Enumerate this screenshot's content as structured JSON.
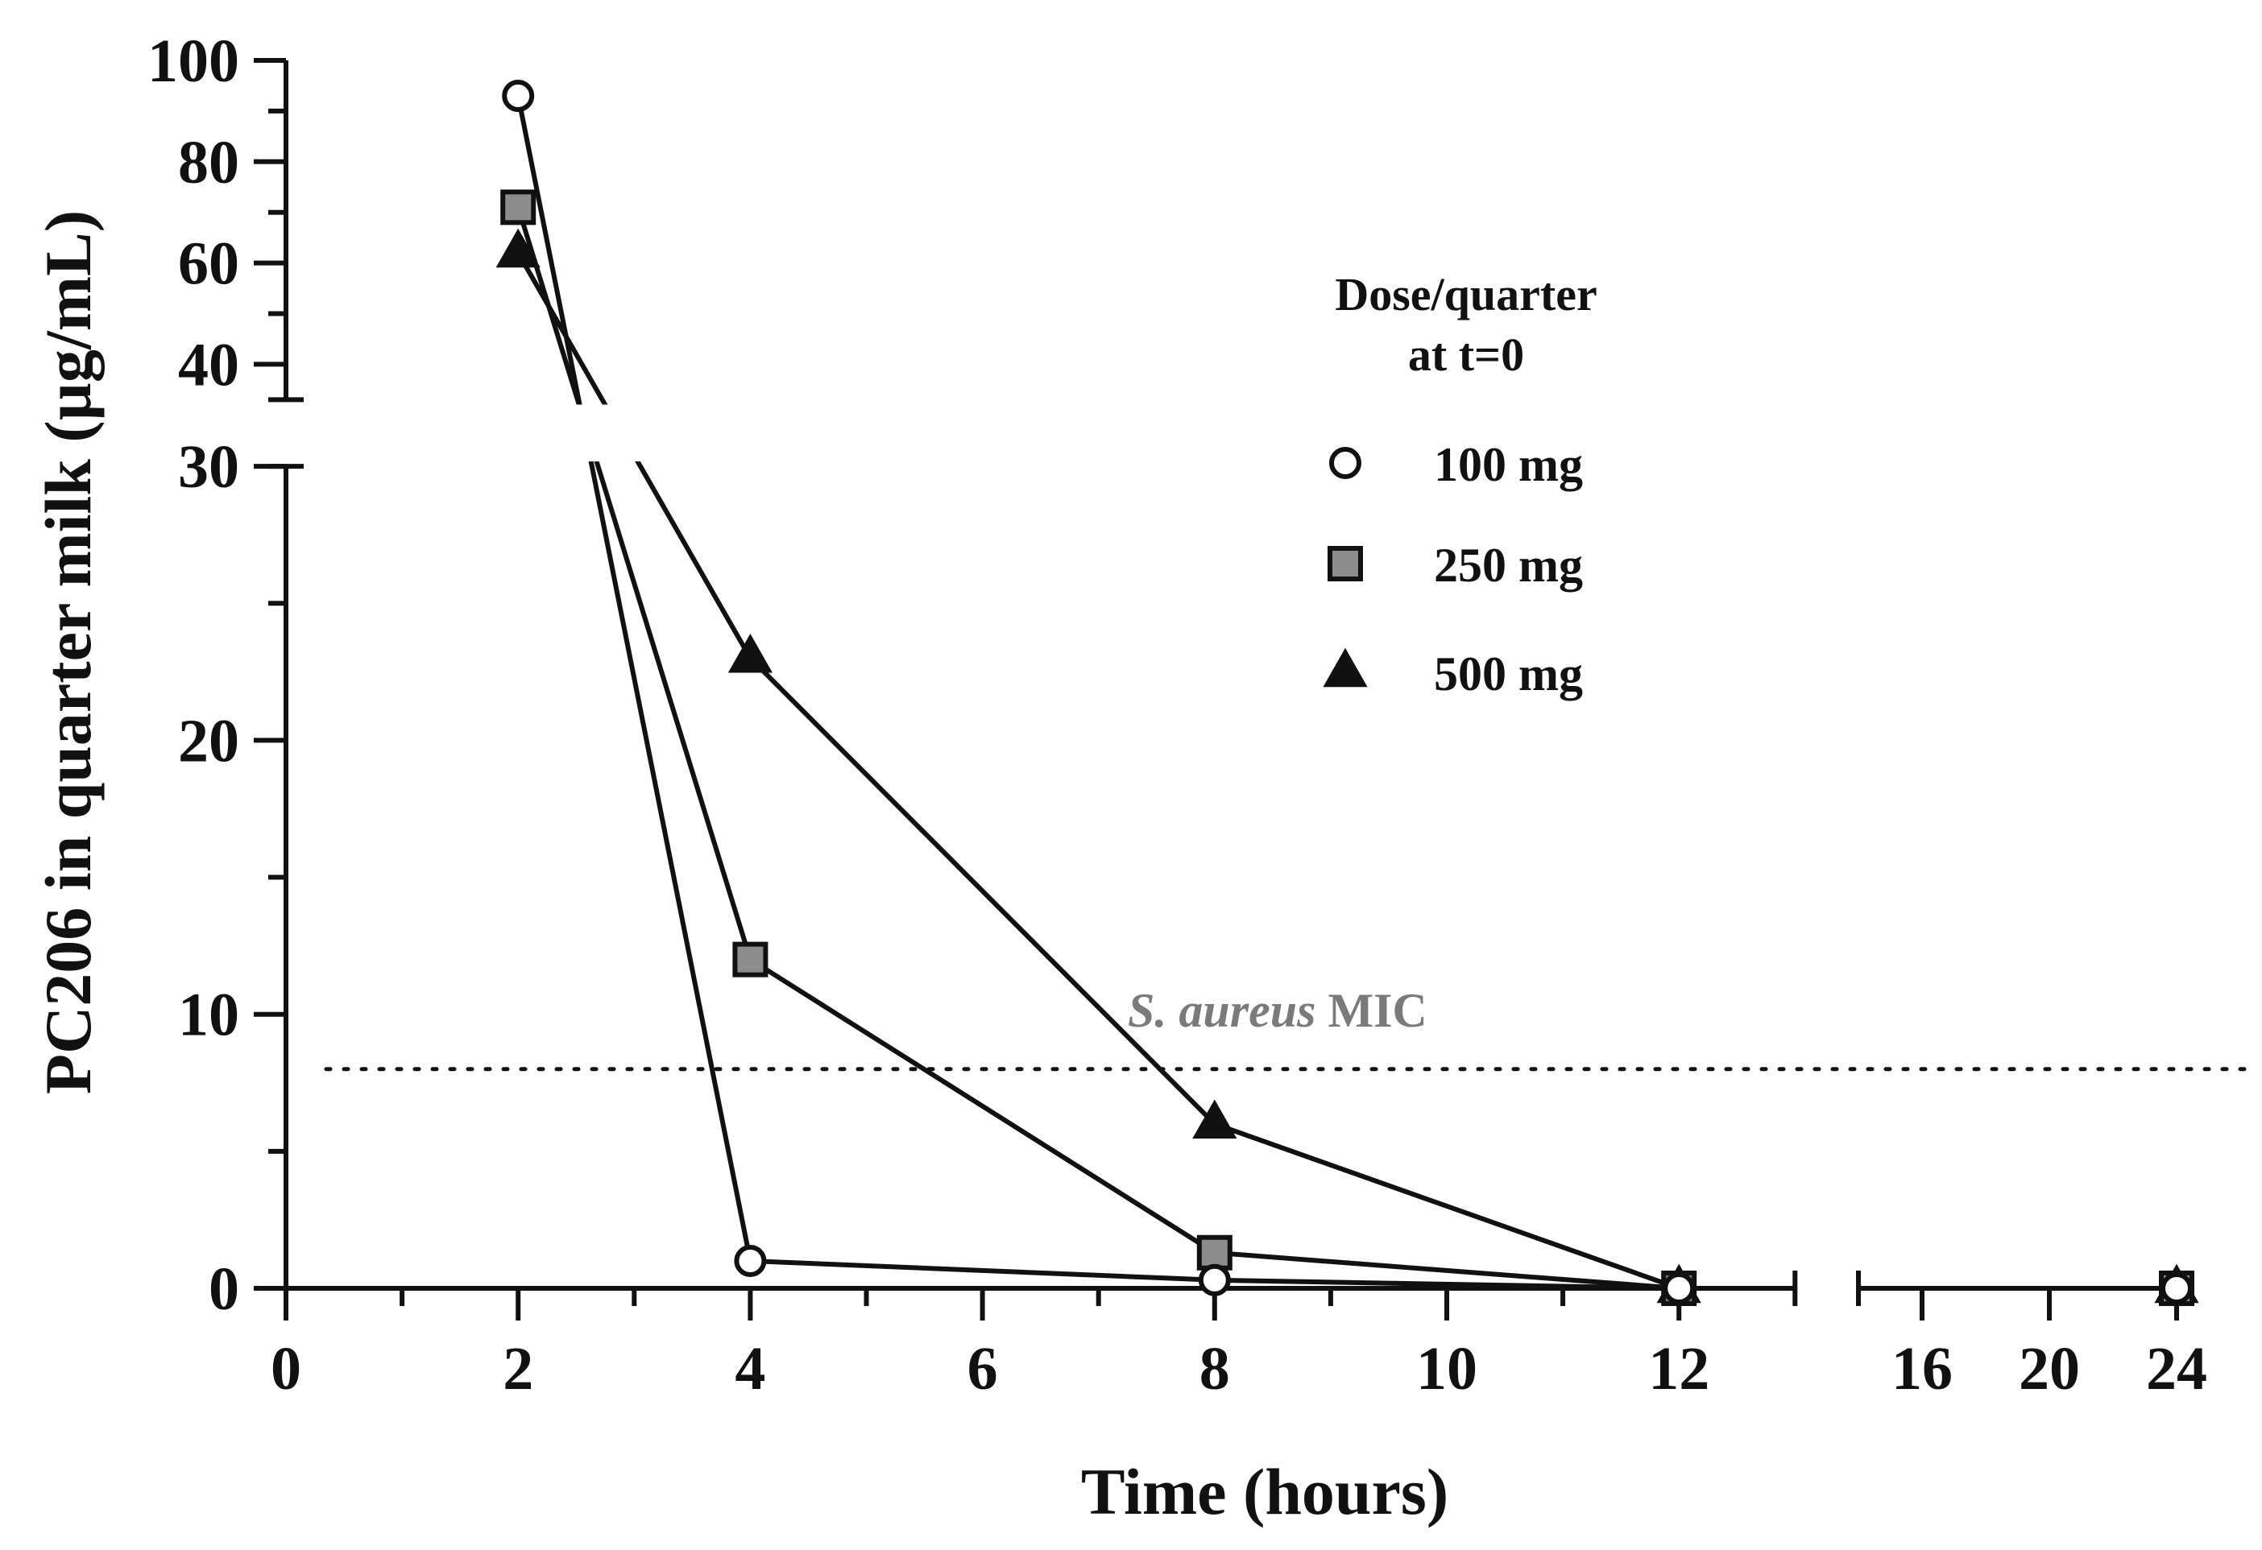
{
  "chart_data": {
    "type": "line",
    "title": "",
    "xlabel": "Time (hours)",
    "ylabel": "PC206 in quarter milk (µg/mL)",
    "x_segments": [
      {
        "range": [
          0,
          13
        ],
        "ticks": [
          0,
          2,
          4,
          6,
          8,
          10,
          12
        ],
        "minor_ticks": [
          1,
          3,
          5,
          7,
          9,
          11
        ]
      },
      {
        "range": [
          14,
          24
        ],
        "ticks": [
          16,
          20,
          24
        ],
        "minor_ticks": []
      }
    ],
    "y_segments": [
      {
        "range": [
          0,
          30
        ],
        "ticks": [
          0,
          10,
          20,
          30
        ],
        "minor_ticks": [
          5,
          15,
          25
        ]
      },
      {
        "range": [
          33,
          100
        ],
        "ticks": [
          40,
          60,
          80,
          100
        ],
        "minor_ticks": [
          50,
          70,
          90
        ]
      }
    ],
    "legend": {
      "title_line1": "Dose/quarter",
      "title_line2": "at t=0",
      "position": "top-right"
    },
    "series": [
      {
        "name": "100 mg",
        "marker": "circle-open",
        "color": "#111111",
        "x": [
          2,
          4,
          8,
          12,
          24
        ],
        "y": [
          93,
          1.0,
          0.3,
          0,
          0
        ]
      },
      {
        "name": "250 mg",
        "marker": "square-gray",
        "color": "#888888",
        "x": [
          2,
          4,
          8,
          12,
          24
        ],
        "y": [
          71,
          12,
          1.3,
          0,
          0
        ]
      },
      {
        "name": "500 mg",
        "marker": "triangle-filled",
        "color": "#111111",
        "x": [
          2,
          4,
          8,
          12,
          24
        ],
        "y": [
          62,
          23,
          6,
          0,
          0
        ]
      }
    ],
    "reference_line": {
      "y": 8,
      "style": "dotted",
      "label_italic": "S. aureus",
      "label_rest": "MIC",
      "label_color": "#7a7a7a"
    }
  }
}
